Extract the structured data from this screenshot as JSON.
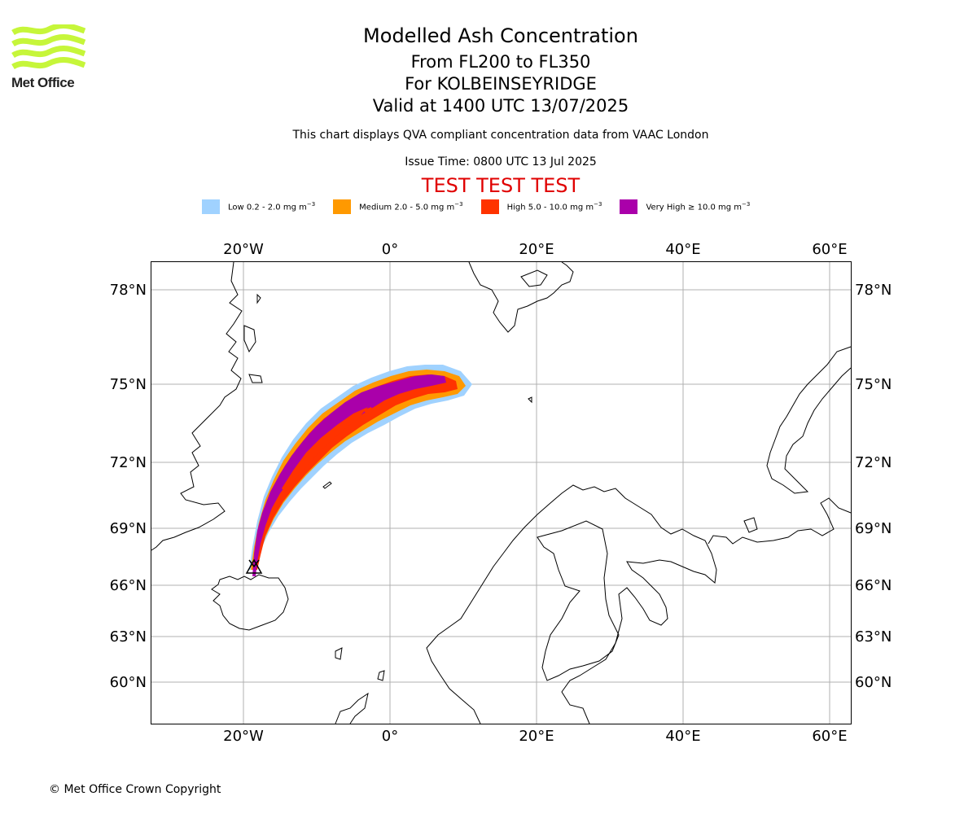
{
  "header": {
    "title": "Modelled Ash Concentration",
    "level_range": "From FL200 to FL350",
    "volcano": "For KOLBEINSEYRIDGE",
    "valid_time": "Valid at 1400 UTC 13/07/2025",
    "note": "This chart displays QVA compliant concentration data from VAAC London",
    "issue_time": "Issue Time: 0800 UTC 13 Jul 2025",
    "test_banner": "TEST TEST TEST"
  },
  "logo": {
    "text": "Met Office",
    "color": "#c6f63a"
  },
  "legend": [
    {
      "label": "Low 0.2 - 2.0 mg m",
      "color": "#a0d2ff"
    },
    {
      "label": "Medium 2.0 - 5.0 mg m",
      "color": "#ff9900"
    },
    {
      "label": "High 5.0 - 10.0 mg m",
      "color": "#ff3300"
    },
    {
      "label": "Very High  ≥  10.0 mg m",
      "color": "#aa00aa"
    }
  ],
  "legend_unit_exponent": "−3",
  "map": {
    "lon_ticks": [
      "20°W",
      "0°",
      "20°E",
      "40°E",
      "60°E"
    ],
    "lat_ticks": [
      "78°N",
      "75°N",
      "72°N",
      "69°N",
      "66°N",
      "63°N",
      "60°N"
    ],
    "grid": true,
    "volcano_marker": "volcano-icon"
  },
  "footer": {
    "copyright": "© Met Office Crown Copyright"
  }
}
